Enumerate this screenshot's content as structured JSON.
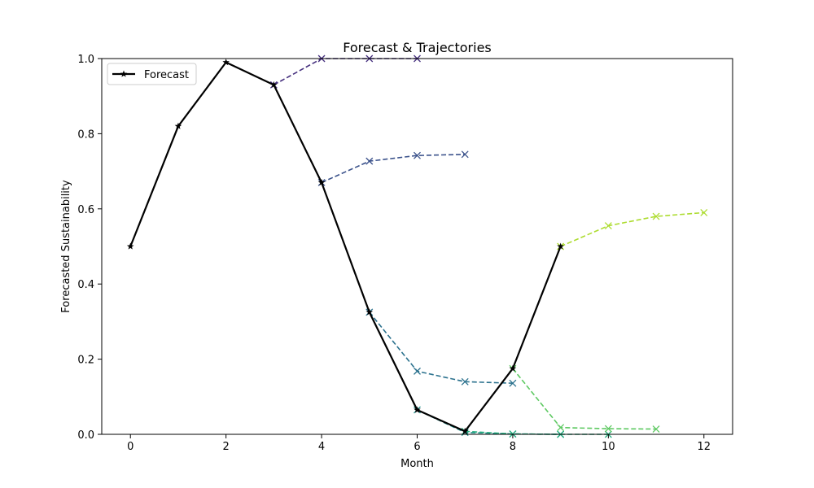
{
  "chart_data": {
    "type": "line",
    "title": "Forecast & Trajectories",
    "xlabel": "Month",
    "ylabel": "Forecasted Sustainability",
    "xlim": [
      -0.6,
      12.6
    ],
    "ylim": [
      0,
      1.0
    ],
    "xticks": [
      0,
      2,
      4,
      6,
      8,
      10,
      12
    ],
    "yticks": [
      0.0,
      0.2,
      0.4,
      0.6,
      0.8,
      1.0
    ],
    "ytick_labels": [
      "0.0",
      "0.2",
      "0.4",
      "0.6",
      "0.8",
      "1.0"
    ],
    "grid": false,
    "legend": {
      "position": "upper-left",
      "entries": [
        "Forecast"
      ]
    },
    "forecast": {
      "name": "Forecast",
      "color": "#000000",
      "marker": "star",
      "x": [
        0,
        1,
        2,
        3,
        4,
        5,
        6,
        7,
        8,
        9
      ],
      "y": [
        0.5,
        0.82,
        0.99,
        0.93,
        0.67,
        0.325,
        0.065,
        0.008,
        0.175,
        0.5
      ]
    },
    "trajectories": [
      {
        "color": "#46307e",
        "x": [
          3,
          4,
          5,
          6
        ],
        "y": [
          0.93,
          1.0,
          1.0,
          1.0
        ]
      },
      {
        "color": "#3b528b",
        "x": [
          4,
          5,
          6,
          7
        ],
        "y": [
          0.67,
          0.727,
          0.742,
          0.745
        ]
      },
      {
        "color": "#2c728e",
        "x": [
          5,
          6,
          7,
          8
        ],
        "y": [
          0.325,
          0.168,
          0.14,
          0.136
        ]
      },
      {
        "color": "#21918c",
        "x": [
          6,
          7,
          8,
          9
        ],
        "y": [
          0.065,
          0.005,
          0.001,
          0.0
        ]
      },
      {
        "color": "#28ae80",
        "x": [
          7,
          8,
          9,
          10
        ],
        "y": [
          0.008,
          0.001,
          0.0,
          0.0
        ]
      },
      {
        "color": "#5ec962",
        "x": [
          8,
          9,
          10,
          11
        ],
        "y": [
          0.175,
          0.018,
          0.015,
          0.014
        ]
      },
      {
        "color": "#addc30",
        "x": [
          9,
          10,
          11,
          12
        ],
        "y": [
          0.5,
          0.555,
          0.58,
          0.59
        ]
      }
    ]
  }
}
